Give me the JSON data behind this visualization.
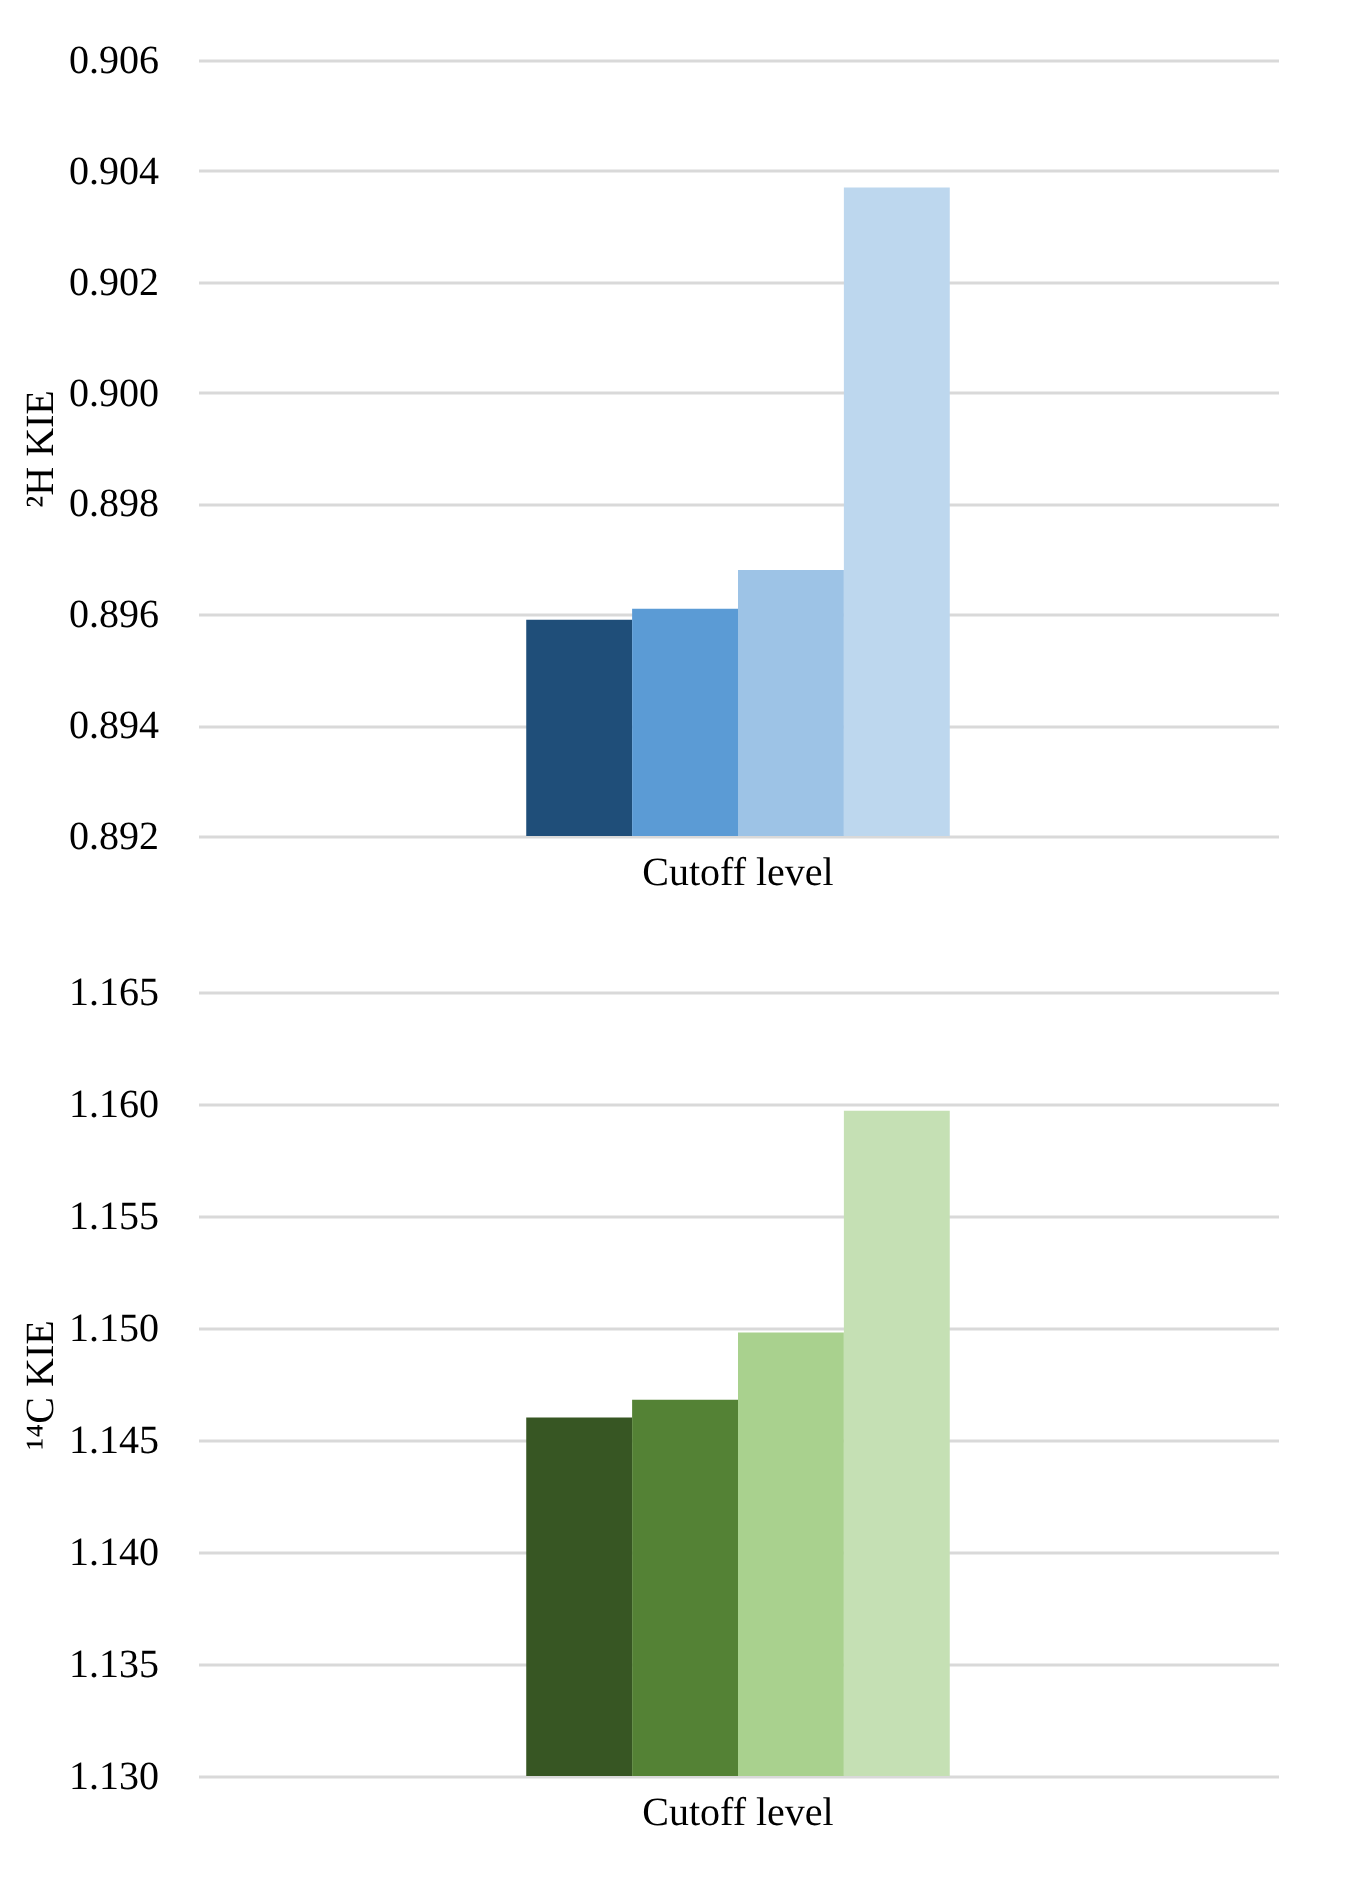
{
  "chart_data": [
    {
      "type": "bar",
      "ylabel": "²H KIE",
      "categories": [
        "Cutoff level"
      ],
      "series": [
        {
          "color": "#1f4e79",
          "values": [
            0.8959
          ]
        },
        {
          "color": "#5b9bd5",
          "values": [
            0.8961
          ]
        },
        {
          "color": "#9dc3e6",
          "values": [
            0.8968
          ]
        },
        {
          "color": "#bdd7ee",
          "values": [
            0.9037
          ]
        }
      ],
      "ylim": [
        0.892,
        0.906
      ],
      "yticks": [
        {
          "value": 0.892,
          "label": "0.892"
        },
        {
          "value": 0.894,
          "label": "0.894"
        },
        {
          "value": 0.896,
          "label": "0.896"
        },
        {
          "value": 0.898,
          "label": "0.898"
        },
        {
          "value": 0.9,
          "label": "0.900"
        },
        {
          "value": 0.902,
          "label": "0.902"
        },
        {
          "value": 0.904,
          "label": "0.904"
        },
        {
          "value": 0.906,
          "label": "0.906"
        }
      ],
      "grid": "y",
      "legend": false
    },
    {
      "type": "bar",
      "ylabel": "¹⁴C KIE",
      "categories": [
        "Cutoff level"
      ],
      "series": [
        {
          "color": "#375623",
          "values": [
            1.146
          ]
        },
        {
          "color": "#548235",
          "values": [
            1.1468
          ]
        },
        {
          "color": "#a9d18e",
          "values": [
            1.1498
          ]
        },
        {
          "color": "#c5e0b4",
          "values": [
            1.1597
          ]
        }
      ],
      "ylim": [
        1.13,
        1.165
      ],
      "yticks": [
        {
          "value": 1.13,
          "label": "1.130"
        },
        {
          "value": 1.135,
          "label": "1.135"
        },
        {
          "value": 1.14,
          "label": "1.140"
        },
        {
          "value": 1.145,
          "label": "1.145"
        },
        {
          "value": 1.15,
          "label": "1.150"
        },
        {
          "value": 1.155,
          "label": "1.155"
        },
        {
          "value": 1.16,
          "label": "1.160"
        },
        {
          "value": 1.165,
          "label": "1.165"
        }
      ],
      "grid": "y",
      "legend": false
    }
  ]
}
